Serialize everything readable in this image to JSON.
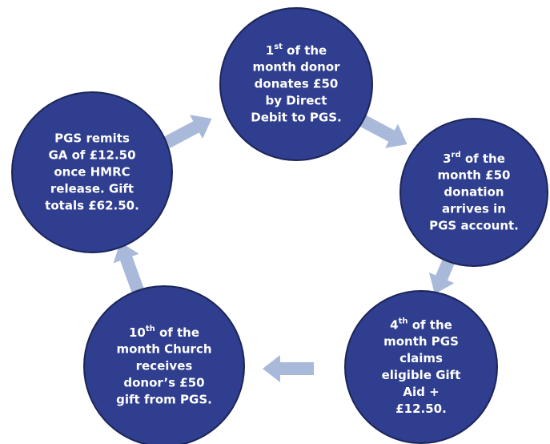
{
  "nodes": [
    {
      "lines": [
        {
          "number": "1",
          "suffix": "st",
          "text": " of the"
        },
        "month donor",
        "donates £50",
        "by Direct",
        "Debit to PGS."
      ]
    },
    {
      "lines": [
        {
          "number": "3",
          "suffix": "rd",
          "text": " of the"
        },
        "month £50",
        "donation",
        "arrives in",
        "PGS account."
      ]
    },
    {
      "lines": [
        {
          "number": "4",
          "suffix": "th",
          "text": " of the"
        },
        "month PGS",
        "claims",
        "eligible Gift",
        "Aid +",
        "£12.50."
      ]
    },
    {
      "lines": [
        {
          "number": "10",
          "suffix": "th",
          "text": " of the"
        },
        "month Church",
        "receives",
        "donor’s £50",
        "gift from PGS."
      ]
    },
    {
      "lines": [
        "PGS remits",
        "GA of £12.50",
        "once HMRC",
        "release. Gift",
        "totals £62.50."
      ]
    }
  ]
}
